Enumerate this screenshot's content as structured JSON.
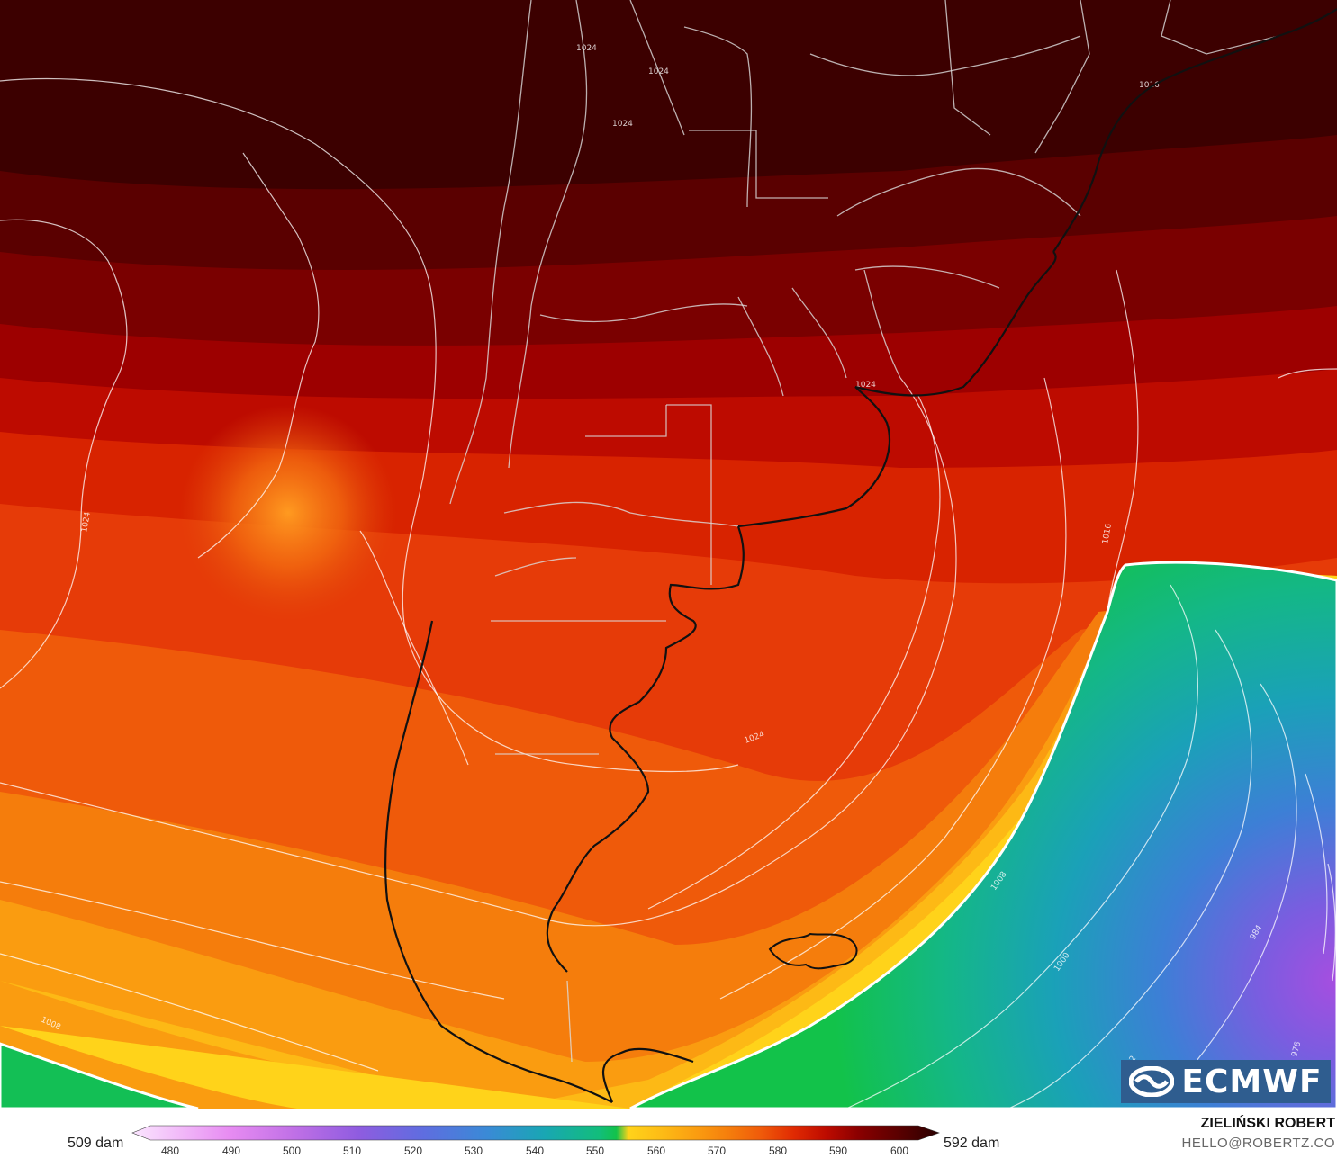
{
  "map": {
    "field": "500 hPa geopotential height (dam) with mean sea level pressure isobars (hPa)",
    "region": "Southern South America",
    "isobar_labels": [
      "1024",
      "1024",
      "1024",
      "1024",
      "1024",
      "1024",
      "1016",
      "1016",
      "1008",
      "1008",
      "1000",
      "992",
      "984",
      "976"
    ],
    "colors": {
      "low": "#9b5de5",
      "mid": "#12c24a",
      "high": "#3d0000"
    }
  },
  "logo": {
    "text": "ECMWF",
    "icon": "ecmwf-logo-icon"
  },
  "legend": {
    "min_label": "509 dam",
    "max_label": "592 dam",
    "ticks": [
      "480",
      "490",
      "500",
      "510",
      "520",
      "530",
      "540",
      "550",
      "560",
      "570",
      "580",
      "590",
      "600"
    ]
  },
  "credit": {
    "name": "ZIELIŃSKI ROBERT",
    "email": "HELLO@ROBERTZ.CO"
  }
}
